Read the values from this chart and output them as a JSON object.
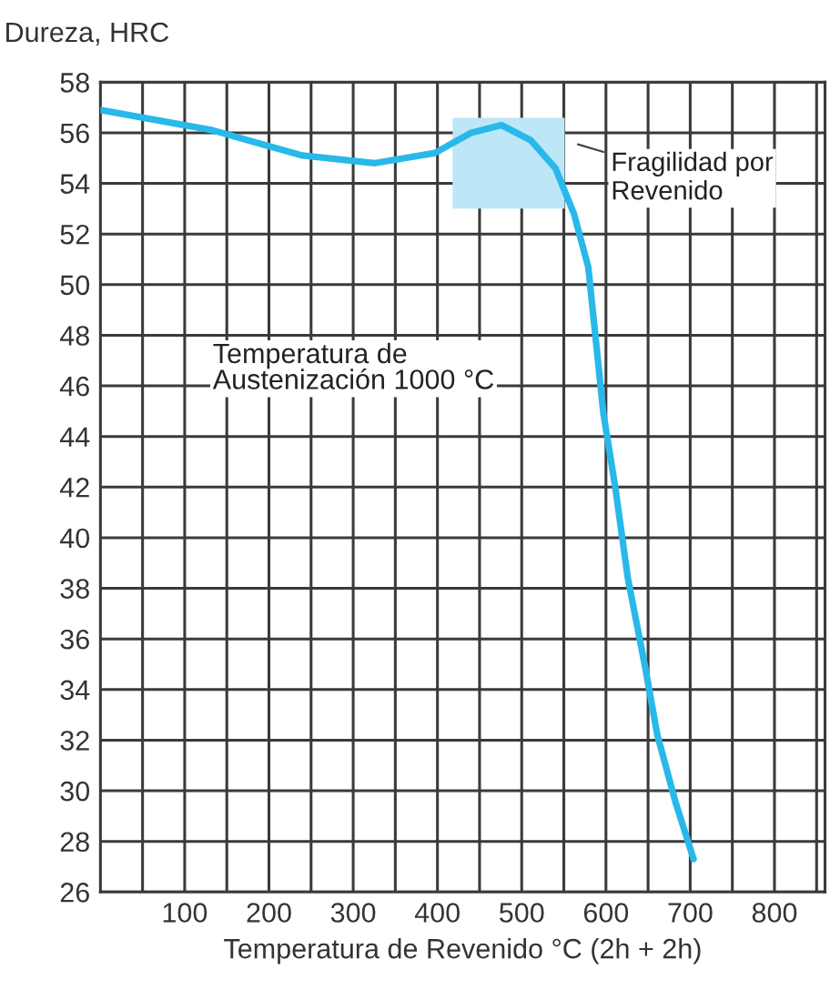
{
  "chart_data": {
    "type": "line",
    "ylabel": "Dureza, HRC",
    "xlabel": "Temperatura de Revenido °C (2h + 2h)",
    "series": [
      {
        "color": "#29b8ea",
        "x": [
          0,
          133,
          240,
          326,
          397,
          440,
          476,
          511,
          540,
          562,
          579,
          597,
          611,
          626,
          647,
          661,
          683,
          704
        ],
        "values": [
          56.9,
          56.1,
          55.1,
          54.8,
          55.2,
          56.0,
          56.3,
          55.7,
          54.6,
          52.8,
          50.7,
          44.9,
          42.0,
          38.4,
          34.8,
          32.2,
          29.5,
          27.3
        ]
      }
    ],
    "xlim": [
      0,
      860
    ],
    "ylim": [
      26,
      58
    ],
    "xticks": [
      {
        "value": 50,
        "label": null
      },
      100,
      {
        "value": 150,
        "label": null
      },
      200,
      {
        "value": 250,
        "label": null
      },
      300,
      {
        "value": 350,
        "label": null
      },
      400,
      {
        "value": 450,
        "label": null
      },
      500,
      {
        "value": 550,
        "label": null
      },
      600,
      {
        "value": 650,
        "label": null
      },
      700,
      {
        "value": 750,
        "label": null
      },
      800,
      {
        "value": 850,
        "label": null
      }
    ],
    "yticks": [
      26,
      28,
      30,
      32,
      34,
      36,
      38,
      40,
      42,
      44,
      46,
      48,
      50,
      52,
      54,
      56,
      58
    ],
    "grid": true,
    "line_style": "solid",
    "marker": "none",
    "legend": false,
    "bands": [
      {
        "axis": "x",
        "from": 418,
        "to": 551,
        "label": "Fragilidad por\nRevenido",
        "color": "#bde6f7"
      }
    ],
    "annotations": [
      "Temperatura de\nAustenización 1000 °C"
    ]
  }
}
